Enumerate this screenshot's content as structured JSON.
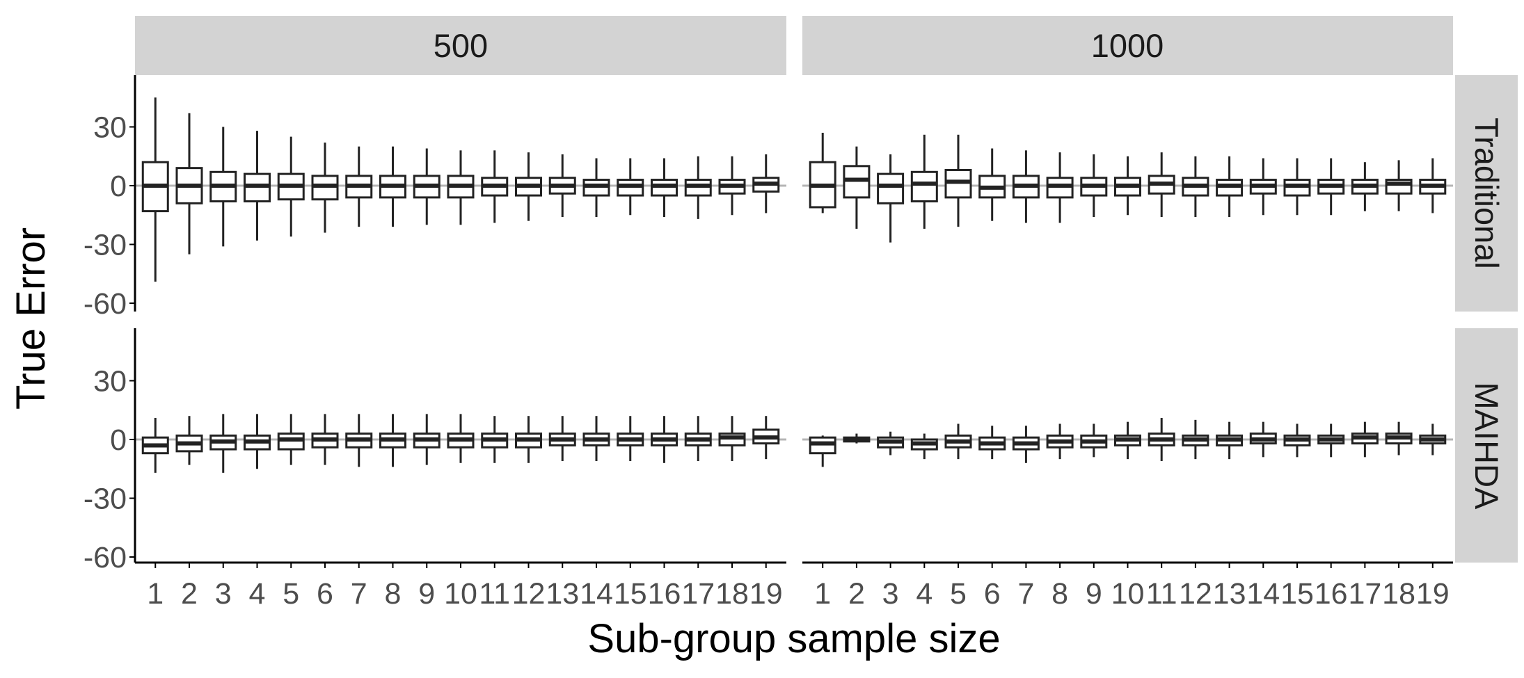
{
  "chart_data": {
    "type": "boxplot",
    "xlabel": "Sub-group sample size",
    "ylabel": "True Error",
    "ylim": [
      -62,
      56
    ],
    "yticks": [
      30,
      0,
      -30,
      -60
    ],
    "ytick_labels": [
      "30",
      "0",
      "-30",
      "-60"
    ],
    "reference_line": 0,
    "grid": false,
    "categories": [
      "1",
      "2",
      "3",
      "4",
      "5",
      "6",
      "7",
      "8",
      "9",
      "10",
      "11",
      "12",
      "13",
      "14",
      "15",
      "16",
      "17",
      "18",
      "19"
    ],
    "columns": [
      "500",
      "1000"
    ],
    "rows": [
      "Traditional",
      "MAIHDA"
    ],
    "panels": [
      {
        "column": "500",
        "row": "Traditional",
        "boxes": [
          {
            "category": "1",
            "whisker_low": -49,
            "q1": -13,
            "median": 0,
            "q3": 12,
            "whisker_high": 45
          },
          {
            "category": "2",
            "whisker_low": -35,
            "q1": -9,
            "median": 0,
            "q3": 9,
            "whisker_high": 37
          },
          {
            "category": "3",
            "whisker_low": -31,
            "q1": -8,
            "median": 0,
            "q3": 7,
            "whisker_high": 30
          },
          {
            "category": "4",
            "whisker_low": -28,
            "q1": -8,
            "median": 0,
            "q3": 6,
            "whisker_high": 28
          },
          {
            "category": "5",
            "whisker_low": -26,
            "q1": -7,
            "median": 0,
            "q3": 6,
            "whisker_high": 25
          },
          {
            "category": "6",
            "whisker_low": -24,
            "q1": -7,
            "median": 0,
            "q3": 5,
            "whisker_high": 22
          },
          {
            "category": "7",
            "whisker_low": -21,
            "q1": -6,
            "median": 0,
            "q3": 5,
            "whisker_high": 20
          },
          {
            "category": "8",
            "whisker_low": -21,
            "q1": -6,
            "median": 0,
            "q3": 5,
            "whisker_high": 20
          },
          {
            "category": "9",
            "whisker_low": -20,
            "q1": -6,
            "median": 0,
            "q3": 5,
            "whisker_high": 19
          },
          {
            "category": "10",
            "whisker_low": -20,
            "q1": -6,
            "median": 0,
            "q3": 5,
            "whisker_high": 18
          },
          {
            "category": "11",
            "whisker_low": -19,
            "q1": -5,
            "median": 0,
            "q3": 4,
            "whisker_high": 18
          },
          {
            "category": "12",
            "whisker_low": -18,
            "q1": -5,
            "median": 0,
            "q3": 4,
            "whisker_high": 17
          },
          {
            "category": "13",
            "whisker_low": -16,
            "q1": -4,
            "median": 0,
            "q3": 4,
            "whisker_high": 16
          },
          {
            "category": "14",
            "whisker_low": -16,
            "q1": -5,
            "median": 0,
            "q3": 3,
            "whisker_high": 14
          },
          {
            "category": "15",
            "whisker_low": -15,
            "q1": -5,
            "median": 0,
            "q3": 3,
            "whisker_high": 14
          },
          {
            "category": "16",
            "whisker_low": -16,
            "q1": -5,
            "median": 0,
            "q3": 3,
            "whisker_high": 14
          },
          {
            "category": "17",
            "whisker_low": -17,
            "q1": -5,
            "median": 0,
            "q3": 3,
            "whisker_high": 15
          },
          {
            "category": "18",
            "whisker_low": -15,
            "q1": -4,
            "median": 0,
            "q3": 3,
            "whisker_high": 15
          },
          {
            "category": "19",
            "whisker_low": -14,
            "q1": -3,
            "median": 1,
            "q3": 4,
            "whisker_high": 16
          }
        ]
      },
      {
        "column": "1000",
        "row": "Traditional",
        "boxes": [
          {
            "category": "1",
            "whisker_low": -14,
            "q1": -11,
            "median": 0,
            "q3": 12,
            "whisker_high": 27
          },
          {
            "category": "2",
            "whisker_low": -22,
            "q1": -6,
            "median": 3,
            "q3": 10,
            "whisker_high": 20
          },
          {
            "category": "3",
            "whisker_low": -29,
            "q1": -9,
            "median": 0,
            "q3": 6,
            "whisker_high": 16
          },
          {
            "category": "4",
            "whisker_low": -22,
            "q1": -8,
            "median": 1,
            "q3": 7,
            "whisker_high": 26
          },
          {
            "category": "5",
            "whisker_low": -21,
            "q1": -6,
            "median": 2,
            "q3": 8,
            "whisker_high": 26
          },
          {
            "category": "6",
            "whisker_low": -18,
            "q1": -6,
            "median": -1,
            "q3": 5,
            "whisker_high": 19
          },
          {
            "category": "7",
            "whisker_low": -19,
            "q1": -6,
            "median": 0,
            "q3": 5,
            "whisker_high": 18
          },
          {
            "category": "8",
            "whisker_low": -19,
            "q1": -6,
            "median": 0,
            "q3": 4,
            "whisker_high": 17
          },
          {
            "category": "9",
            "whisker_low": -16,
            "q1": -5,
            "median": 0,
            "q3": 4,
            "whisker_high": 16
          },
          {
            "category": "10",
            "whisker_low": -15,
            "q1": -5,
            "median": 0,
            "q3": 4,
            "whisker_high": 15
          },
          {
            "category": "11",
            "whisker_low": -16,
            "q1": -4,
            "median": 1,
            "q3": 5,
            "whisker_high": 17
          },
          {
            "category": "12",
            "whisker_low": -16,
            "q1": -5,
            "median": 0,
            "q3": 4,
            "whisker_high": 15
          },
          {
            "category": "13",
            "whisker_low": -16,
            "q1": -5,
            "median": 0,
            "q3": 3,
            "whisker_high": 15
          },
          {
            "category": "14",
            "whisker_low": -15,
            "q1": -4,
            "median": 0,
            "q3": 3,
            "whisker_high": 14
          },
          {
            "category": "15",
            "whisker_low": -15,
            "q1": -5,
            "median": 0,
            "q3": 3,
            "whisker_high": 14
          },
          {
            "category": "16",
            "whisker_low": -15,
            "q1": -4,
            "median": 0,
            "q3": 3,
            "whisker_high": 14
          },
          {
            "category": "17",
            "whisker_low": -13,
            "q1": -4,
            "median": 0,
            "q3": 3,
            "whisker_high": 12
          },
          {
            "category": "18",
            "whisker_low": -13,
            "q1": -4,
            "median": 1,
            "q3": 3,
            "whisker_high": 13
          },
          {
            "category": "19",
            "whisker_low": -14,
            "q1": -4,
            "median": 0,
            "q3": 3,
            "whisker_high": 14
          }
        ]
      },
      {
        "column": "500",
        "row": "MAIHDA",
        "boxes": [
          {
            "category": "1",
            "whisker_low": -17,
            "q1": -7,
            "median": -3,
            "q3": 1,
            "whisker_high": 11
          },
          {
            "category": "2",
            "whisker_low": -13,
            "q1": -6,
            "median": -2,
            "q3": 2,
            "whisker_high": 12
          },
          {
            "category": "3",
            "whisker_low": -17,
            "q1": -5,
            "median": -1,
            "q3": 2,
            "whisker_high": 13
          },
          {
            "category": "4",
            "whisker_low": -15,
            "q1": -5,
            "median": -1,
            "q3": 2,
            "whisker_high": 13
          },
          {
            "category": "5",
            "whisker_low": -13,
            "q1": -5,
            "median": 0,
            "q3": 3,
            "whisker_high": 13
          },
          {
            "category": "6",
            "whisker_low": -13,
            "q1": -4,
            "median": 0,
            "q3": 3,
            "whisker_high": 13
          },
          {
            "category": "7",
            "whisker_low": -14,
            "q1": -4,
            "median": 0,
            "q3": 3,
            "whisker_high": 13
          },
          {
            "category": "8",
            "whisker_low": -14,
            "q1": -4,
            "median": 0,
            "q3": 3,
            "whisker_high": 13
          },
          {
            "category": "9",
            "whisker_low": -13,
            "q1": -4,
            "median": 0,
            "q3": 3,
            "whisker_high": 13
          },
          {
            "category": "10",
            "whisker_low": -12,
            "q1": -4,
            "median": 0,
            "q3": 3,
            "whisker_high": 13
          },
          {
            "category": "11",
            "whisker_low": -12,
            "q1": -4,
            "median": 0,
            "q3": 3,
            "whisker_high": 12
          },
          {
            "category": "12",
            "whisker_low": -12,
            "q1": -4,
            "median": 0,
            "q3": 3,
            "whisker_high": 12
          },
          {
            "category": "13",
            "whisker_low": -11,
            "q1": -3,
            "median": 0,
            "q3": 3,
            "whisker_high": 12
          },
          {
            "category": "14",
            "whisker_low": -11,
            "q1": -3,
            "median": 0,
            "q3": 3,
            "whisker_high": 12
          },
          {
            "category": "15",
            "whisker_low": -11,
            "q1": -3,
            "median": 0,
            "q3": 3,
            "whisker_high": 12
          },
          {
            "category": "16",
            "whisker_low": -12,
            "q1": -3,
            "median": 0,
            "q3": 3,
            "whisker_high": 12
          },
          {
            "category": "17",
            "whisker_low": -11,
            "q1": -3,
            "median": 0,
            "q3": 3,
            "whisker_high": 12
          },
          {
            "category": "18",
            "whisker_low": -11,
            "q1": -3,
            "median": 1,
            "q3": 3,
            "whisker_high": 12
          },
          {
            "category": "19",
            "whisker_low": -10,
            "q1": -2,
            "median": 1,
            "q3": 5,
            "whisker_high": 12
          }
        ]
      },
      {
        "column": "1000",
        "row": "MAIHDA",
        "boxes": [
          {
            "category": "1",
            "whisker_low": -14,
            "q1": -7,
            "median": -2,
            "q3": 1,
            "whisker_high": 2
          },
          {
            "category": "2",
            "whisker_low": -2,
            "q1": -1,
            "median": 0,
            "q3": 1,
            "whisker_high": 3
          },
          {
            "category": "3",
            "whisker_low": -8,
            "q1": -4,
            "median": -1,
            "q3": 1,
            "whisker_high": 4
          },
          {
            "category": "4",
            "whisker_low": -10,
            "q1": -5,
            "median": -2,
            "q3": 0,
            "whisker_high": 3
          },
          {
            "category": "5",
            "whisker_low": -10,
            "q1": -4,
            "median": -1,
            "q3": 2,
            "whisker_high": 8
          },
          {
            "category": "6",
            "whisker_low": -10,
            "q1": -5,
            "median": -2,
            "q3": 1,
            "whisker_high": 7
          },
          {
            "category": "7",
            "whisker_low": -12,
            "q1": -5,
            "median": -2,
            "q3": 1,
            "whisker_high": 7
          },
          {
            "category": "8",
            "whisker_low": -10,
            "q1": -4,
            "median": -1,
            "q3": 2,
            "whisker_high": 8
          },
          {
            "category": "9",
            "whisker_low": -9,
            "q1": -4,
            "median": -1,
            "q3": 2,
            "whisker_high": 8
          },
          {
            "category": "10",
            "whisker_low": -10,
            "q1": -3,
            "median": 0,
            "q3": 2,
            "whisker_high": 9
          },
          {
            "category": "11",
            "whisker_low": -11,
            "q1": -3,
            "median": 0,
            "q3": 3,
            "whisker_high": 11
          },
          {
            "category": "12",
            "whisker_low": -10,
            "q1": -3,
            "median": 0,
            "q3": 2,
            "whisker_high": 10
          },
          {
            "category": "13",
            "whisker_low": -10,
            "q1": -3,
            "median": 0,
            "q3": 2,
            "whisker_high": 9
          },
          {
            "category": "14",
            "whisker_low": -9,
            "q1": -2,
            "median": 0,
            "q3": 3,
            "whisker_high": 9
          },
          {
            "category": "15",
            "whisker_low": -9,
            "q1": -3,
            "median": 0,
            "q3": 2,
            "whisker_high": 8
          },
          {
            "category": "16",
            "whisker_low": -9,
            "q1": -2,
            "median": 0,
            "q3": 2,
            "whisker_high": 8
          },
          {
            "category": "17",
            "whisker_low": -9,
            "q1": -2,
            "median": 1,
            "q3": 3,
            "whisker_high": 9
          },
          {
            "category": "18",
            "whisker_low": -8,
            "q1": -2,
            "median": 1,
            "q3": 3,
            "whisker_high": 9
          },
          {
            "category": "19",
            "whisker_low": -8,
            "q1": -2,
            "median": 0,
            "q3": 2,
            "whisker_high": 8
          }
        ]
      }
    ]
  },
  "colors": {
    "background": "#ffffff",
    "strip_fill": "#d3d3d3",
    "box_stroke": "#222222",
    "box_fill": "#ffffff",
    "reference_line": "#b5b5b5",
    "axis_line": "#000000",
    "tick_text": "#4d4d4d",
    "title_text": "#000000",
    "strip_text": "#1a1a1a"
  }
}
